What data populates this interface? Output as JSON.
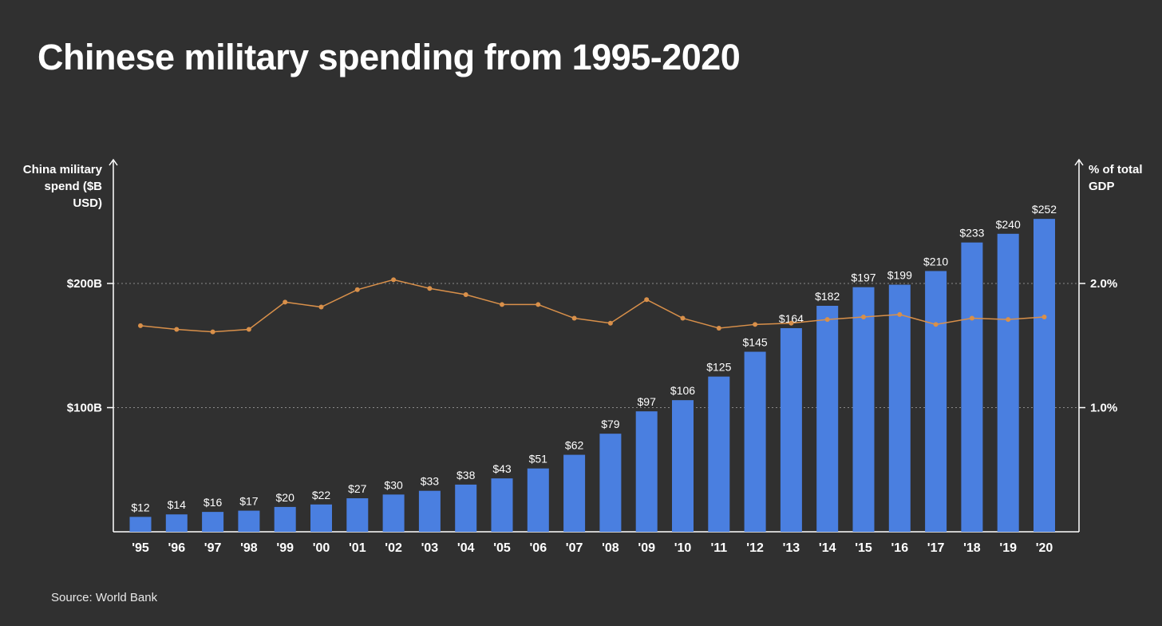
{
  "title": "Chinese military spending from 1995-2020",
  "source": "Source: World Bank",
  "colors": {
    "background": "#303030",
    "bar": "#4a7fe0",
    "line": "#d9904a",
    "axis": "#ffffff",
    "grid": "#8a8a8a"
  },
  "chart_data": {
    "type": "bar",
    "title": "Chinese military spending from 1995-2020",
    "categories": [
      "'95",
      "'96",
      "'97",
      "'98",
      "'99",
      "'00",
      "'01",
      "'02",
      "'03",
      "'04",
      "'05",
      "'06",
      "'07",
      "'08",
      "'09",
      "'10",
      "'11",
      "'12",
      "'13",
      "'14",
      "'15",
      "'16",
      "'17",
      "'18",
      "'19",
      "'20"
    ],
    "series": [
      {
        "values": [
          12,
          14,
          16,
          17,
          20,
          22,
          27,
          30,
          33,
          38,
          43,
          51,
          62,
          79,
          97,
          106,
          125,
          145,
          164,
          182,
          197,
          199,
          210,
          233,
          240,
          252
        ],
        "type": "bar",
        "axis": "left"
      },
      {
        "values": [
          1.66,
          1.63,
          1.61,
          1.63,
          1.85,
          1.81,
          1.95,
          2.03,
          1.96,
          1.91,
          1.83,
          1.83,
          1.72,
          1.68,
          1.87,
          1.72,
          1.64,
          1.67,
          1.68,
          1.71,
          1.73,
          1.75,
          1.67,
          1.72,
          1.71,
          1.73
        ],
        "type": "line",
        "axis": "right"
      }
    ],
    "bar_labels": [
      "$12",
      "$14",
      "$16",
      "$17",
      "$20",
      "$22",
      "$27",
      "$30",
      "$33",
      "$38",
      "$43",
      "$51",
      "$62",
      "$79",
      "$97",
      "$106",
      "$125",
      "$145",
      "$164",
      "$182",
      "$197",
      "$199",
      "$210",
      "$233",
      "$240",
      "$252"
    ],
    "ylabel": "China military spend ($B USD)",
    "ylabel_display": "China military\nspend ($B\nUSD)",
    "y2label": "% of total GDP",
    "y2label_display": "% of total\nGDP",
    "ylim": [
      0,
      300
    ],
    "y2lim": [
      0,
      3.0
    ],
    "yticks": [
      {
        "value": 100,
        "label": "$100B"
      },
      {
        "value": 200,
        "label": "$200B"
      }
    ],
    "y2ticks": [
      {
        "value": 1.0,
        "label": "1.0%"
      },
      {
        "value": 2.0,
        "label": "2.0%"
      }
    ],
    "grid": "dotted horizontal at tick values",
    "legend": "none"
  }
}
